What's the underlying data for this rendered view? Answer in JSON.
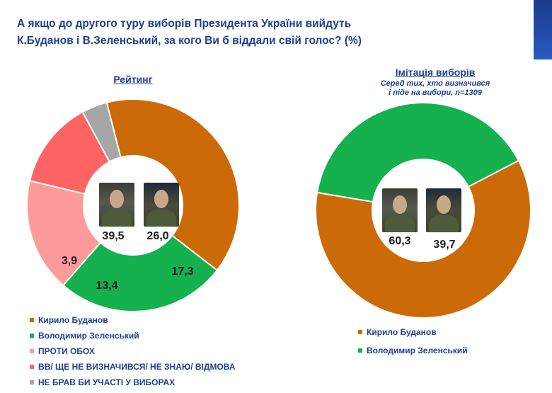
{
  "title_line1": "А якщо до другого туру виборів Президента України вийдуть",
  "title_line2": "К.Буданов і В.Зеленський, за кого Ви б віддали свій голос? (%)",
  "chart_data": [
    {
      "type": "pie",
      "title": "Рейтинг",
      "subtitle": "",
      "donut": true,
      "categories": [
        "Кирило Буданов",
        "Володимир Зеленський",
        "ПРОТИ ОБОХ",
        "ВВ/ ЩЕ НЕ ВИЗНАЧИВСЯ/ НЕ ЗНАЮ/ ВІДМОВА",
        "НЕ БРАВ БИ УЧАСТІ У ВИБОРАХ"
      ],
      "values": [
        39.5,
        26.0,
        17.3,
        13.4,
        3.9
      ],
      "labels": [
        "39,5",
        "26,0",
        "17,3",
        "13,4",
        "3,9"
      ],
      "colors": [
        "#cc6a08",
        "#14b14e",
        "#ff9a9a",
        "#ff6464",
        "#a6a6a6"
      ],
      "legend": "bottom-left"
    },
    {
      "type": "pie",
      "title": "Імітація виборів",
      "subtitle_lines": [
        "Серед тих, хто визначився",
        "і піде на вибори, n=1309"
      ],
      "donut": true,
      "categories": [
        "Кирило Буданов",
        "Володимир Зеленський"
      ],
      "values": [
        60.3,
        39.7
      ],
      "labels": [
        "60,3",
        "39,7"
      ],
      "colors": [
        "#cc6a08",
        "#14b14e"
      ],
      "legend": "bottom"
    }
  ]
}
